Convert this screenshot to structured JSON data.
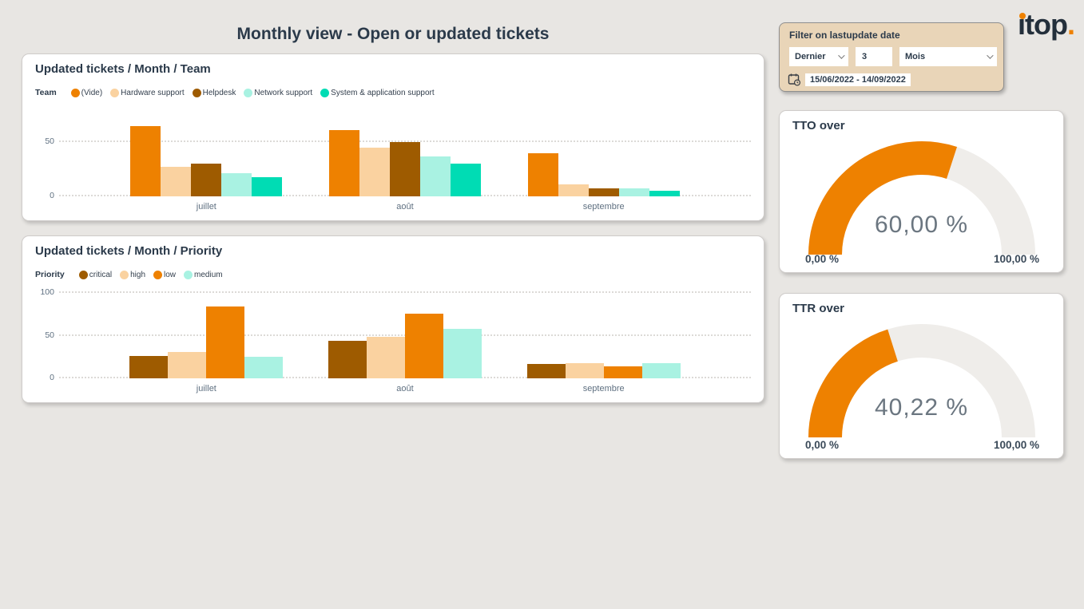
{
  "page": {
    "title": "Monthly view - Open or updated tickets",
    "logo_text": "itop",
    "logo_suffix": "."
  },
  "filter": {
    "title": "Filter on lastupdate date",
    "period_select": "Dernier",
    "count_value": "3",
    "unit_select": "Mois",
    "date_range": "15/06/2022 - 14/09/2022"
  },
  "colors": {
    "accent_orange": "#ee8100",
    "tan": "#fad2a0",
    "brown": "#9e5b00",
    "pale_teal": "#a9f2e2",
    "teal": "#00dcb4",
    "gauge_track": "#efedea"
  },
  "chart_data": [
    {
      "type": "bar",
      "title": "Updated tickets / Month / Team",
      "legend_label": "Team",
      "categories": [
        "juillet",
        "août",
        "septembre"
      ],
      "series": [
        {
          "name": "(Vide)",
          "color": "#ee8100",
          "values": [
            65,
            61,
            40
          ]
        },
        {
          "name": "Hardware support",
          "color": "#fad2a0",
          "values": [
            27,
            45,
            11
          ]
        },
        {
          "name": "Helpdesk",
          "color": "#9e5b00",
          "values": [
            30,
            50,
            7
          ]
        },
        {
          "name": "Network support",
          "color": "#a9f2e2",
          "values": [
            21,
            37,
            7
          ]
        },
        {
          "name": "System & application support",
          "color": "#00dcb4",
          "values": [
            18,
            30,
            5
          ]
        }
      ],
      "yticks": [
        0,
        50
      ],
      "ylim": [
        0,
        80
      ],
      "grid": "dotted horizontal",
      "legend_position": "top-left"
    },
    {
      "type": "bar",
      "title": "Updated tickets / Month / Priority",
      "legend_label": "Priority",
      "categories": [
        "juillet",
        "août",
        "septembre"
      ],
      "series": [
        {
          "name": "critical",
          "color": "#9e5b00",
          "values": [
            26,
            44,
            17
          ]
        },
        {
          "name": "high",
          "color": "#fad2a0",
          "values": [
            31,
            49,
            18
          ]
        },
        {
          "name": "low",
          "color": "#ee8100",
          "values": [
            84,
            76,
            14
          ]
        },
        {
          "name": "medium",
          "color": "#a9f2e2",
          "values": [
            25,
            58,
            18
          ]
        }
      ],
      "yticks": [
        0,
        50,
        100
      ],
      "ylim": [
        0,
        100
      ],
      "grid": "dotted horizontal",
      "legend_position": "top-left"
    },
    {
      "type": "gauge",
      "title": "TTO over",
      "value": 60.0,
      "value_label": "60,00 %",
      "min_label": "0,00 %",
      "max_label": "100,00 %",
      "color": "#ee8100",
      "track_color": "#efedea"
    },
    {
      "type": "gauge",
      "title": "TTR over",
      "value": 40.22,
      "value_label": "40,22 %",
      "min_label": "0,00 %",
      "max_label": "100,00 %",
      "color": "#ee8100",
      "track_color": "#efedea"
    }
  ]
}
